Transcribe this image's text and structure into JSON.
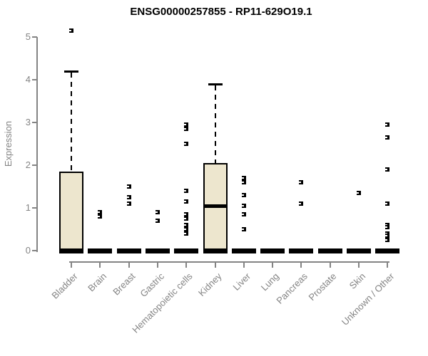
{
  "title": "ENSG00000257855 - RP11-629O19.1",
  "chart_data": {
    "type": "boxplot",
    "title": "ENSG00000257855 - RP11-629O19.1",
    "xlabel": "",
    "ylabel": "Expression",
    "ylim": [
      0,
      5
    ],
    "yticks": [
      0,
      1,
      2,
      3,
      4,
      5
    ],
    "grid": false,
    "legend": false,
    "categories": [
      "Bladder",
      "Brain",
      "Breast",
      "Gastric",
      "Hematopoietic cells",
      "Kidney",
      "Liver",
      "Lung",
      "Pancreas",
      "Prostate",
      "Skin",
      "Unknown / Other"
    ],
    "boxes": [
      {
        "category": "Bladder",
        "q1": 0,
        "median": 0,
        "q3": 1.85,
        "whisker_low": 0,
        "whisker_high": 4.2,
        "outliers": [
          5.15
        ]
      },
      {
        "category": "Brain",
        "q1": 0,
        "median": 0,
        "q3": 0,
        "whisker_low": 0,
        "whisker_high": 0,
        "outliers": [
          0.9,
          0.8
        ]
      },
      {
        "category": "Breast",
        "q1": 0,
        "median": 0,
        "q3": 0,
        "whisker_low": 0,
        "whisker_high": 0,
        "outliers": [
          1.5,
          1.25,
          1.1
        ]
      },
      {
        "category": "Gastric",
        "q1": 0,
        "median": 0,
        "q3": 0,
        "whisker_low": 0,
        "whisker_high": 0,
        "outliers": [
          0.9,
          0.7
        ]
      },
      {
        "category": "Hematopoietic cells",
        "q1": 0,
        "median": 0,
        "q3": 0,
        "whisker_low": 0,
        "whisker_high": 0,
        "outliers": [
          2.95,
          2.85,
          2.5,
          1.4,
          1.15,
          0.85,
          0.75,
          0.6,
          0.5,
          0.4
        ]
      },
      {
        "category": "Kidney",
        "q1": 0,
        "median": 1.05,
        "q3": 2.05,
        "whisker_low": 0,
        "whisker_high": 3.9,
        "outliers": []
      },
      {
        "category": "Liver",
        "q1": 0,
        "median": 0,
        "q3": 0,
        "whisker_low": 0,
        "whisker_high": 0,
        "outliers": [
          1.7,
          1.6,
          1.3,
          1.05,
          0.85,
          0.5
        ]
      },
      {
        "category": "Lung",
        "q1": 0,
        "median": 0,
        "q3": 0,
        "whisker_low": 0,
        "whisker_high": 0,
        "outliers": []
      },
      {
        "category": "Pancreas",
        "q1": 0,
        "median": 0,
        "q3": 0,
        "whisker_low": 0,
        "whisker_high": 0,
        "outliers": [
          1.6,
          1.1
        ]
      },
      {
        "category": "Prostate",
        "q1": 0,
        "median": 0,
        "q3": 0,
        "whisker_low": 0,
        "whisker_high": 0,
        "outliers": []
      },
      {
        "category": "Skin",
        "q1": 0,
        "median": 0,
        "q3": 0,
        "whisker_low": 0,
        "whisker_high": 0,
        "outliers": [
          1.35
        ]
      },
      {
        "category": "Unknown / Other",
        "q1": 0,
        "median": 0,
        "q3": 0,
        "whisker_low": 0,
        "whisker_high": 0,
        "outliers": [
          2.95,
          2.65,
          1.9,
          1.1,
          0.6,
          0.55,
          0.4,
          0.35,
          0.25
        ]
      }
    ],
    "colors": {
      "background": "#FFFFFF",
      "box_fill": "#EDE6CE",
      "box_border": "#000000",
      "median": "#000000",
      "outlier": "#000000",
      "axis": "#848484",
      "tick_label": "#848484",
      "title": "#000000"
    }
  }
}
